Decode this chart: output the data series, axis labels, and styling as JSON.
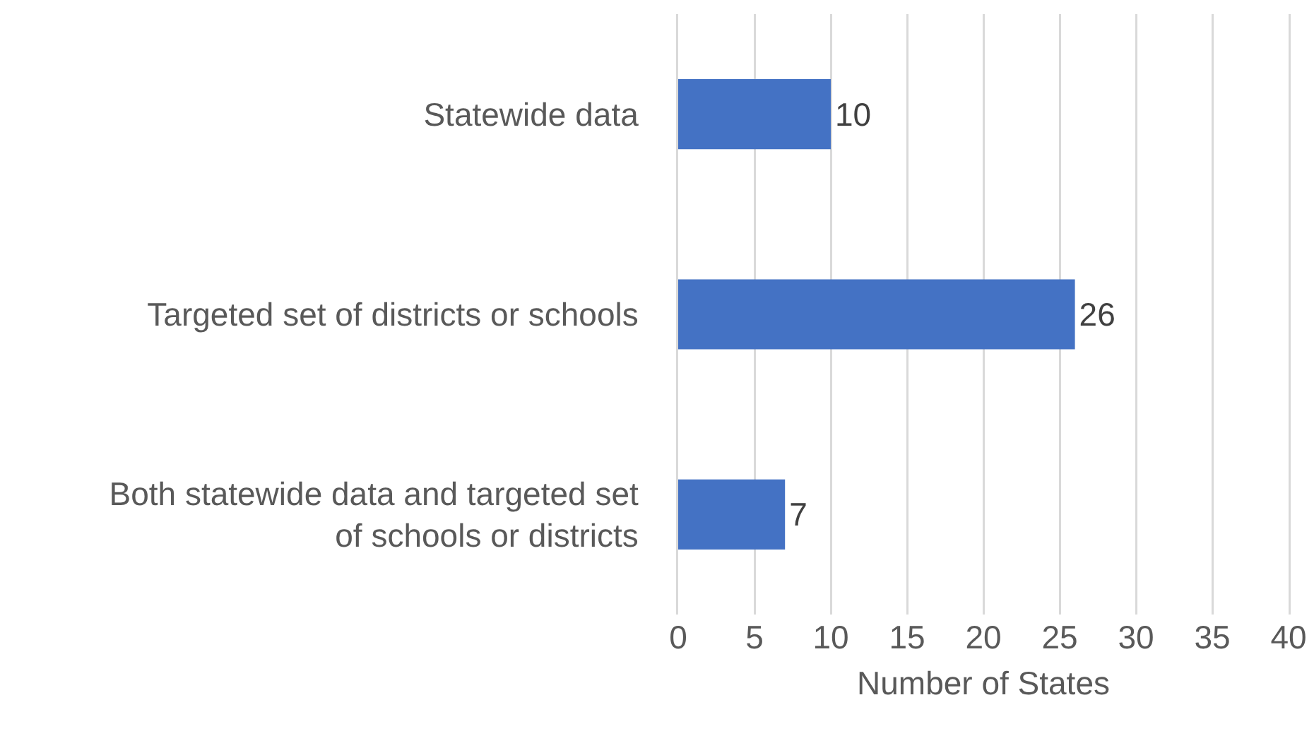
{
  "chart_data": {
    "type": "bar",
    "orientation": "horizontal",
    "categories": [
      "Statewide data",
      "Targeted set of districts or schools",
      "Both statewide data and targeted set of schools or districts"
    ],
    "values": [
      10,
      26,
      7
    ],
    "color": "#4472c4",
    "data_labels": true,
    "xlabel": "Number of States",
    "xlim": [
      0,
      40
    ],
    "xticks": [
      0,
      5,
      10,
      15,
      20,
      25,
      30,
      35,
      40
    ],
    "grid": "x"
  }
}
